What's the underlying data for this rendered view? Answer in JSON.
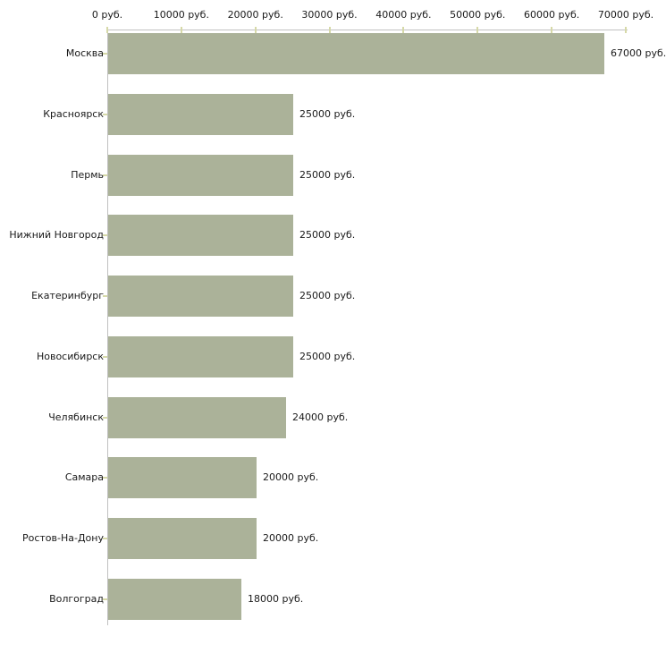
{
  "chart_data": {
    "type": "bar",
    "orientation": "horizontal",
    "unit": "руб.",
    "categories": [
      "Москва",
      "Красноярск",
      "Пермь",
      "Нижний Новгород",
      "Екатеринбург",
      "Новосибирск",
      "Челябинск",
      "Самара",
      "Ростов-На-Дону",
      "Волгоград"
    ],
    "values": [
      67000,
      25000,
      25000,
      25000,
      25000,
      25000,
      24000,
      20000,
      20000,
      18000
    ],
    "value_labels": [
      "67000 руб.",
      "25000 руб.",
      "25000 руб.",
      "25000 руб.",
      "25000 руб.",
      "25000 руб.",
      "24000 руб.",
      "20000 руб.",
      "20000 руб.",
      "18000 руб."
    ],
    "x_ticks": [
      0,
      10000,
      20000,
      30000,
      40000,
      50000,
      60000,
      70000
    ],
    "x_tick_labels": [
      "0 руб.",
      "10000 руб.",
      "20000 руб.",
      "30000 руб.",
      "40000 руб.",
      "50000 руб.",
      "60000 руб.",
      "70000 руб."
    ],
    "xlim": [
      0,
      70000
    ],
    "grid": false,
    "legend_position": "none",
    "colors": {
      "bar": "#abb299",
      "tick": "#d6d9a8",
      "axis": "#c0c0c0",
      "text": "#1a1a1a",
      "background": "#ffffff"
    }
  }
}
